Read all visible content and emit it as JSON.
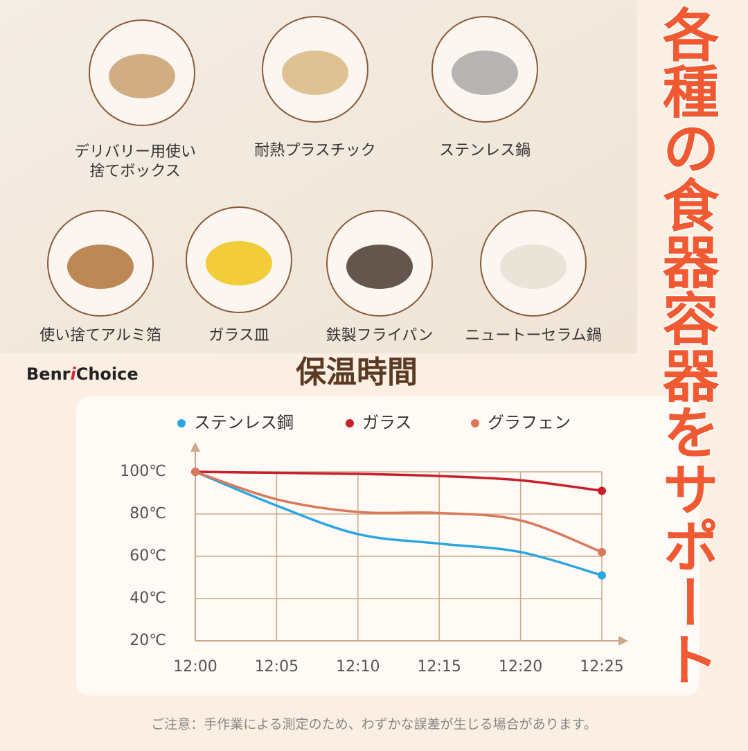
{
  "items": [
    {
      "label": [
        "デリバリー用使い",
        "捨てボックス"
      ]
    },
    {
      "label": [
        "耐熱プラスチック"
      ]
    },
    {
      "label": [
        "ステンレス鍋"
      ]
    },
    {
      "label": [
        "使い捨てアルミ箔"
      ]
    },
    {
      "label": [
        "ガラス皿"
      ]
    },
    {
      "label": [
        "鉄製フライパン"
      ]
    },
    {
      "label": [
        "ニュートーセラム鍋"
      ]
    }
  ],
  "brand": [
    "Benr",
    "i",
    "Choice"
  ],
  "side_text": "各種の食器容器をサポート",
  "note": "ご注意：手作業による測定のため、わずかな誤差が生じる場合があります。",
  "chart_data": {
    "type": "line",
    "title": "保温時間",
    "categories": [
      "12:00",
      "12:05",
      "12:10",
      "12:15",
      "12:20",
      "12:25"
    ],
    "series": [
      {
        "name": "ステンレス鋼",
        "color": "#2aa6e0",
        "values": [
          100,
          84,
          70.5,
          66,
          62,
          51
        ]
      },
      {
        "name": "ガラス",
        "color": "#c8202a",
        "values": [
          100,
          99.5,
          99,
          98,
          96,
          91
        ]
      },
      {
        "name": "グラフェン",
        "color": "#d9785a",
        "values": [
          100,
          87,
          81,
          80.5,
          77,
          62
        ]
      }
    ],
    "ylim": [
      20,
      100
    ],
    "yticks": [
      {
        "value": 20,
        "label": "20℃"
      },
      {
        "value": 40,
        "label": "40℃"
      },
      {
        "value": 60,
        "label": "60℃"
      },
      {
        "value": 80,
        "label": "80℃"
      },
      {
        "value": 100,
        "label": "100℃"
      }
    ],
    "grid": true
  }
}
